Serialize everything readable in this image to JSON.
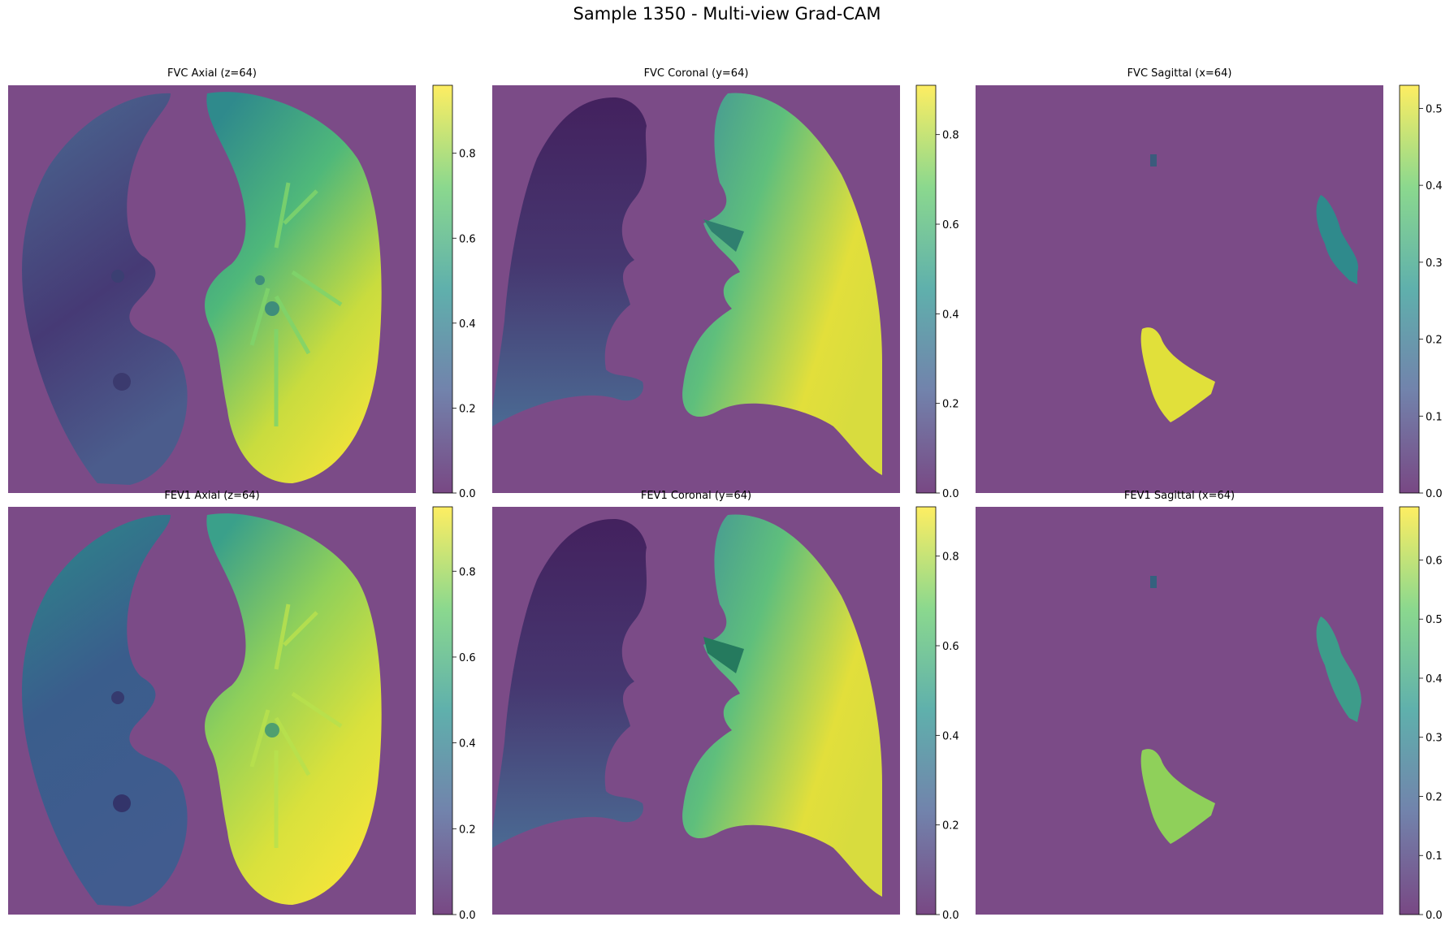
{
  "figure": {
    "title": "Sample 1350 - Multi-view Grad-CAM"
  },
  "colormap": {
    "name": "viridis",
    "overlay_background": "#7b4b87",
    "stops": [
      "#440154",
      "#3b528b",
      "#21918c",
      "#5ec962",
      "#fde725"
    ]
  },
  "panels": [
    {
      "title": "FVC Axial (z=64)",
      "view": "axial",
      "colorbar": {
        "vmax": 0.96,
        "ticks": [
          "0.0",
          "0.2",
          "0.4",
          "0.6",
          "0.8"
        ]
      }
    },
    {
      "title": "FVC Coronal (y=64)",
      "view": "coronal",
      "colorbar": {
        "vmax": 0.91,
        "ticks": [
          "0.0",
          "0.2",
          "0.4",
          "0.6",
          "0.8"
        ]
      }
    },
    {
      "title": "FVC Sagittal (x=64)",
      "view": "sagittal",
      "colorbar": {
        "vmax": 0.53,
        "ticks": [
          "0.0",
          "0.1",
          "0.2",
          "0.3",
          "0.4",
          "0.5"
        ]
      }
    },
    {
      "title": "FEV1 Axial (z=64)",
      "view": "axial",
      "colorbar": {
        "vmax": 0.95,
        "ticks": [
          "0.0",
          "0.2",
          "0.4",
          "0.6",
          "0.8"
        ]
      }
    },
    {
      "title": "FEV1 Coronal (y=64)",
      "view": "coronal",
      "colorbar": {
        "vmax": 0.91,
        "ticks": [
          "0.0",
          "0.2",
          "0.4",
          "0.6",
          "0.8"
        ]
      }
    },
    {
      "title": "FEV1 Sagittal (x=64)",
      "view": "sagittal",
      "colorbar": {
        "vmax": 0.69,
        "ticks": [
          "0.0",
          "0.1",
          "0.2",
          "0.3",
          "0.4",
          "0.5",
          "0.6"
        ]
      }
    }
  ]
}
